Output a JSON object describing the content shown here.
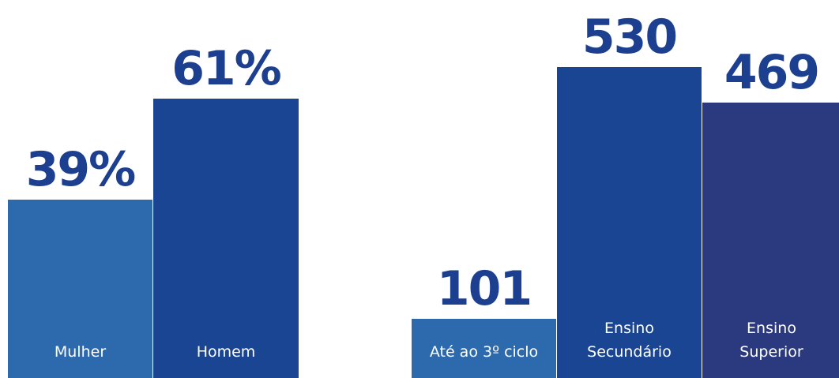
{
  "chart_data": [
    {
      "type": "bar",
      "categories": [
        "Mulher",
        "Homem"
      ],
      "values": [
        39,
        61
      ],
      "value_labels": [
        "39%",
        "61%"
      ],
      "colors": [
        "#2d6aad",
        "#1a4592"
      ]
    },
    {
      "type": "bar",
      "categories": [
        "Até ao 3º ciclo",
        "Ensino Secundário",
        "Ensino Superior"
      ],
      "values": [
        101,
        530,
        469
      ],
      "colors": [
        "#2d6aad",
        "#1a4592",
        "#2b3a7e"
      ]
    }
  ]
}
